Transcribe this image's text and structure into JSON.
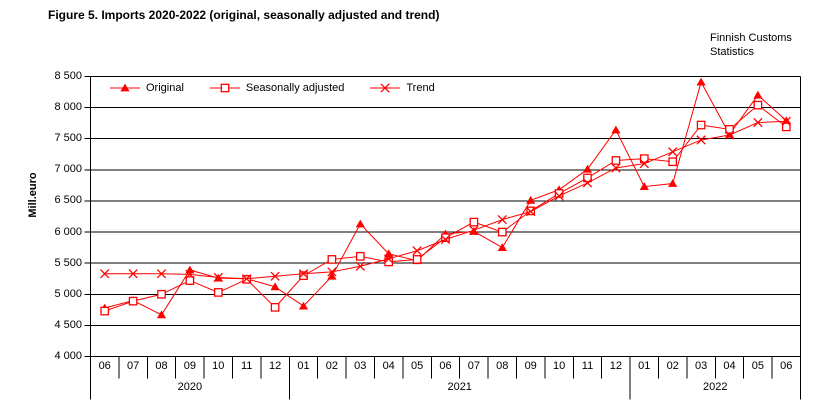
{
  "title": "Figure 5. Imports 2020-2022 (original, seasonally adjusted and trend)",
  "source": {
    "line1": "Finnish Customs",
    "line2": "Statistics"
  },
  "colors": {
    "series": "#FF0000",
    "grid": "#000000",
    "text": "#000000",
    "background": "#FFFFFF"
  },
  "chart_data": {
    "type": "line",
    "title": "Figure 5. Imports 2020-2022 (original, seasonally adjusted and trend)",
    "xlabel": "",
    "ylabel": "Mill.euro",
    "ylim": [
      4000,
      8500
    ],
    "ytick_step": 500,
    "grid": true,
    "legend_position": "top-left-inside",
    "x_months": [
      "06",
      "07",
      "08",
      "09",
      "10",
      "11",
      "12",
      "01",
      "02",
      "03",
      "04",
      "05",
      "06",
      "07",
      "08",
      "09",
      "10",
      "11",
      "12",
      "01",
      "02",
      "03",
      "04",
      "05",
      "06"
    ],
    "year_groups": [
      {
        "label": "2020",
        "count": 7
      },
      {
        "label": "2021",
        "count": 12
      },
      {
        "label": "2022",
        "count": 6
      }
    ],
    "series": [
      {
        "name": "Original",
        "marker": "triangle-filled",
        "values": [
          4780,
          4900,
          4670,
          5390,
          5260,
          5250,
          5120,
          4810,
          5290,
          6130,
          5650,
          5540,
          5970,
          6010,
          5750,
          6510,
          6680,
          7010,
          7640,
          6730,
          6780,
          8410,
          7570,
          8200,
          7790
        ]
      },
      {
        "name": "Seasonally adjusted",
        "marker": "square-open",
        "values": [
          4730,
          4890,
          5000,
          5220,
          5030,
          5240,
          4790,
          5300,
          5560,
          5610,
          5520,
          5560,
          5910,
          6160,
          6000,
          6340,
          6620,
          6870,
          7150,
          7180,
          7130,
          7720,
          7650,
          8040,
          7690
        ]
      },
      {
        "name": "Trend",
        "marker": "x",
        "values": [
          5330,
          5330,
          5330,
          5320,
          5270,
          5250,
          5290,
          5330,
          5360,
          5450,
          5570,
          5700,
          5880,
          6030,
          6200,
          6330,
          6580,
          6790,
          7030,
          7100,
          7290,
          7480,
          7560,
          7760,
          7780
        ]
      }
    ]
  }
}
